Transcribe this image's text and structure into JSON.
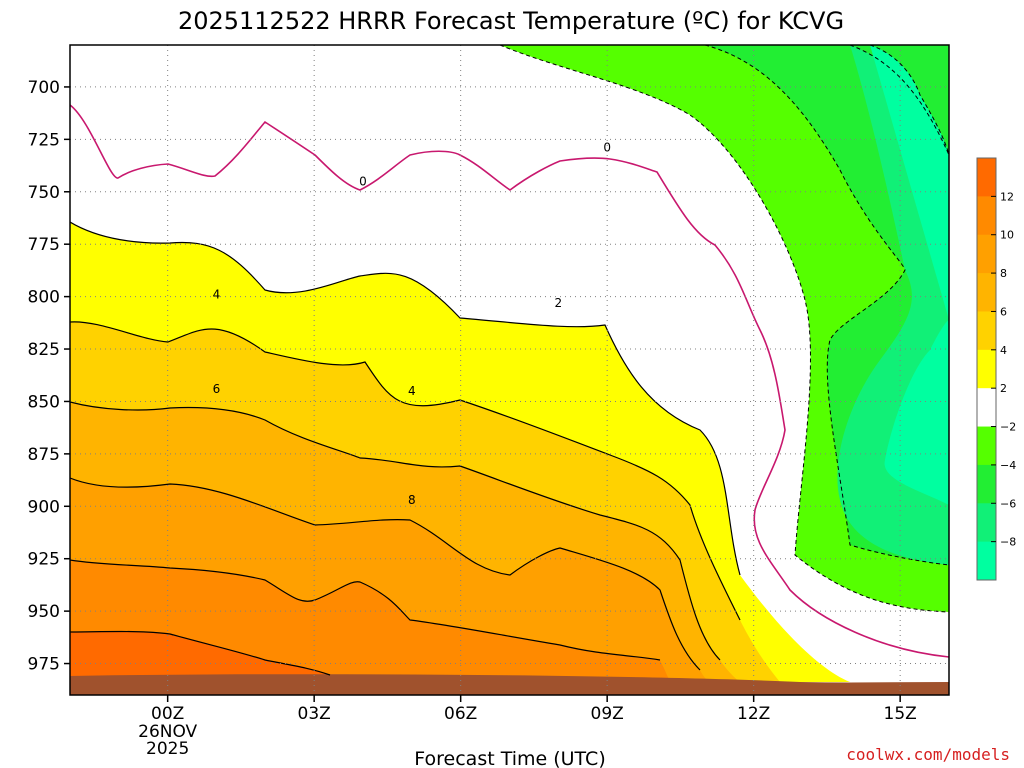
{
  "chart_data": {
    "type": "contour",
    "title": "2025112522 HRRR Forecast Temperature (ºC) for KCVG",
    "xlabel": "Forecast Time (UTC)",
    "x_ticks": [
      {
        "label": "00Z",
        "sub": [
          "26NOV",
          "2025"
        ]
      },
      {
        "label": "03Z",
        "sub": []
      },
      {
        "label": "06Z",
        "sub": []
      },
      {
        "label": "09Z",
        "sub": []
      },
      {
        "label": "12Z",
        "sub": []
      },
      {
        "label": "15Z",
        "sub": []
      }
    ],
    "y_ticks": [
      "700",
      "725",
      "750",
      "775",
      "800",
      "825",
      "850",
      "875",
      "900",
      "925",
      "950",
      "975"
    ],
    "y_range_hpa": [
      680,
      990
    ],
    "x_range_hours": [
      -2,
      16
    ],
    "colorbar": {
      "ticks": [
        "12",
        "10",
        "8",
        "6",
        "4",
        "2",
        "−2",
        "−4",
        "−6",
        "−8"
      ],
      "bands": [
        {
          "range": "12 to 14",
          "color": "#ff6a00"
        },
        {
          "range": "10 to 12",
          "color": "#ff8a00"
        },
        {
          "range": "8 to 10",
          "color": "#ffa000"
        },
        {
          "range": "6 to 8",
          "color": "#ffb400"
        },
        {
          "range": "4 to 6",
          "color": "#ffd200"
        },
        {
          "range": "2 to 4",
          "color": "#ffff00"
        },
        {
          "range": "-2 to 2",
          "color": "#ffffff"
        },
        {
          "range": "-4 to -2",
          "color": "#55ff00"
        },
        {
          "range": "-6 to -4",
          "color": "#22ee33"
        },
        {
          "range": "-8 to -6",
          "color": "#11f077"
        },
        {
          "range": "-10 to -8",
          "color": "#00ffa0"
        }
      ]
    },
    "contour_labels": [
      {
        "text": "0",
        "hour": 4.0,
        "hpa": 745
      },
      {
        "text": "0",
        "hour": 9.0,
        "hpa": 729
      },
      {
        "text": "2",
        "hour": 8.0,
        "hpa": 803
      },
      {
        "text": "4",
        "hour": 1.0,
        "hpa": 799
      },
      {
        "text": "4",
        "hour": 5.0,
        "hpa": 845
      },
      {
        "text": "6",
        "hour": 1.0,
        "hpa": 844
      },
      {
        "text": "8",
        "hour": 5.0,
        "hpa": 897
      }
    ],
    "ground_color": "#a0522d",
    "grid": "dotted"
  },
  "credit": "coolwx.com/models"
}
